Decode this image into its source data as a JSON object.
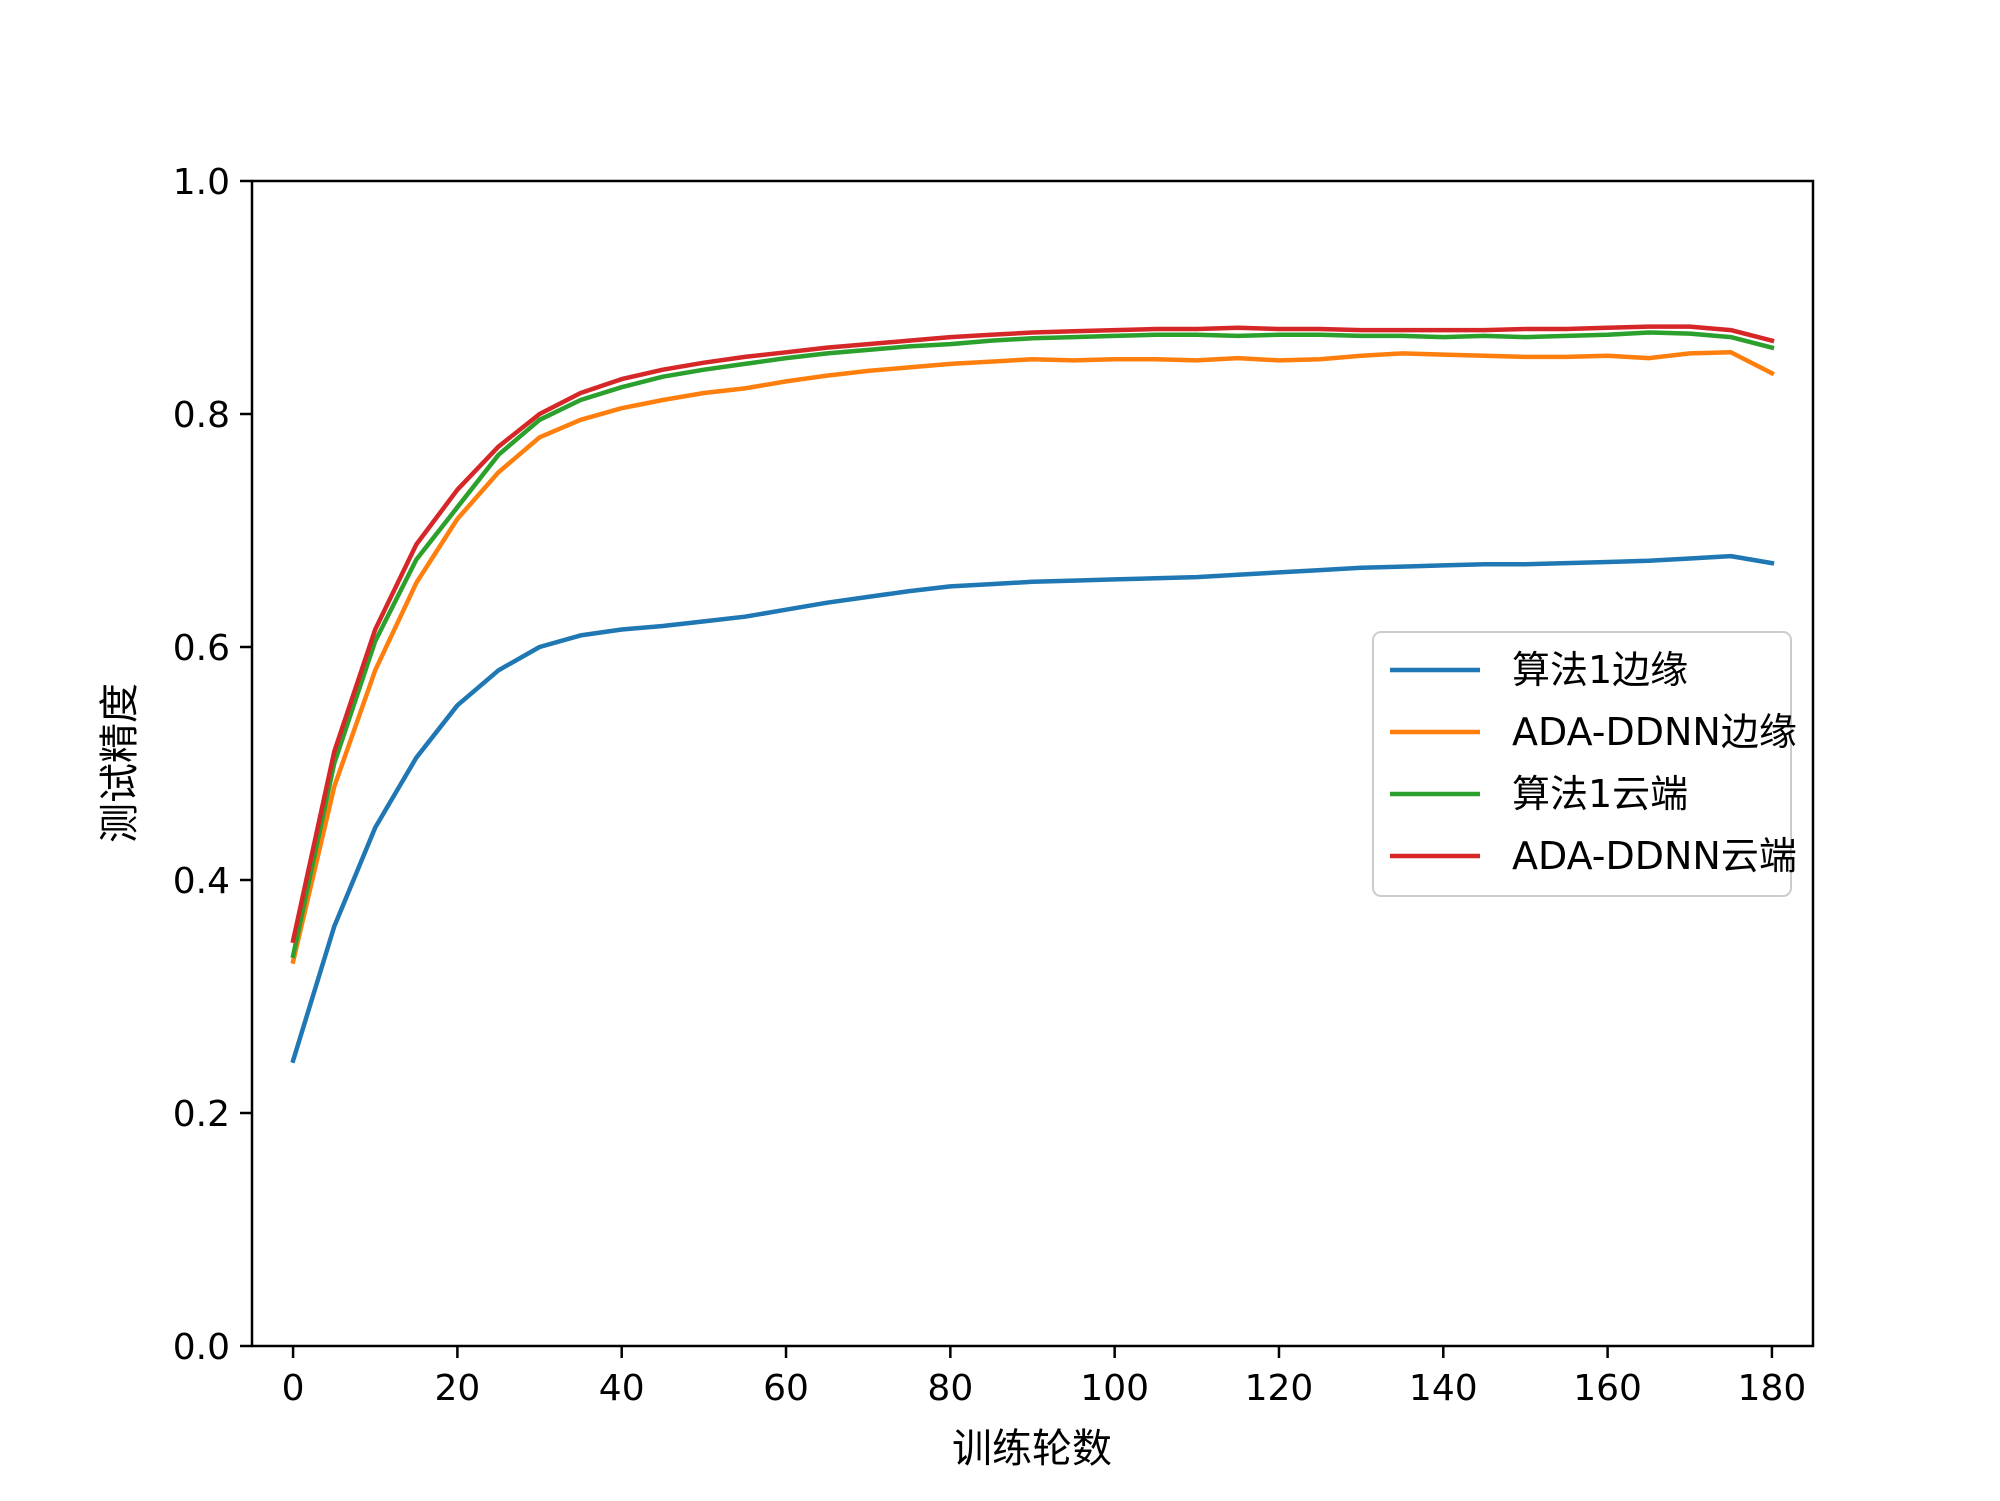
{
  "chart_data": {
    "type": "line",
    "xlabel": "训练轮数",
    "ylabel": "测试精度",
    "xlim": [
      -5,
      185
    ],
    "ylim": [
      0.0,
      1.0
    ],
    "xticks": [
      0,
      20,
      40,
      60,
      80,
      100,
      120,
      140,
      160,
      180
    ],
    "xtick_labels": [
      "0",
      "20",
      "40",
      "60",
      "80",
      "100",
      "120",
      "140",
      "160",
      "180"
    ],
    "yticks": [
      0.0,
      0.2,
      0.4,
      0.6,
      0.8,
      1.0
    ],
    "ytick_labels": [
      "0.0",
      "0.2",
      "0.4",
      "0.6",
      "0.8",
      "1.0"
    ],
    "grid": false,
    "legend_position": "center-right",
    "x": [
      0,
      5,
      10,
      15,
      20,
      25,
      30,
      35,
      40,
      45,
      50,
      55,
      60,
      65,
      70,
      75,
      80,
      85,
      90,
      95,
      100,
      105,
      110,
      115,
      120,
      125,
      130,
      135,
      140,
      145,
      150,
      155,
      160,
      165,
      170,
      175,
      180
    ],
    "series": [
      {
        "name": "算法1边缘",
        "color": "#1f77b4",
        "values": [
          0.245,
          0.36,
          0.445,
          0.505,
          0.55,
          0.58,
          0.6,
          0.61,
          0.615,
          0.618,
          0.622,
          0.626,
          0.632,
          0.638,
          0.643,
          0.648,
          0.652,
          0.654,
          0.656,
          0.657,
          0.658,
          0.659,
          0.66,
          0.662,
          0.664,
          0.666,
          0.668,
          0.669,
          0.67,
          0.671,
          0.671,
          0.672,
          0.673,
          0.674,
          0.676,
          0.678,
          0.672
        ]
      },
      {
        "name": "ADA-DDNN边缘",
        "color": "#ff7f0e",
        "values": [
          0.33,
          0.48,
          0.58,
          0.655,
          0.71,
          0.75,
          0.78,
          0.795,
          0.805,
          0.812,
          0.818,
          0.822,
          0.828,
          0.833,
          0.837,
          0.84,
          0.843,
          0.845,
          0.847,
          0.846,
          0.847,
          0.847,
          0.846,
          0.848,
          0.846,
          0.847,
          0.85,
          0.852,
          0.851,
          0.85,
          0.849,
          0.849,
          0.85,
          0.848,
          0.852,
          0.853,
          0.835
        ]
      },
      {
        "name": "算法1云端",
        "color": "#2ca02c",
        "values": [
          0.335,
          0.5,
          0.605,
          0.675,
          0.72,
          0.765,
          0.795,
          0.812,
          0.823,
          0.832,
          0.838,
          0.843,
          0.848,
          0.852,
          0.855,
          0.858,
          0.86,
          0.863,
          0.865,
          0.866,
          0.867,
          0.868,
          0.868,
          0.867,
          0.868,
          0.868,
          0.867,
          0.867,
          0.866,
          0.867,
          0.866,
          0.867,
          0.868,
          0.87,
          0.869,
          0.866,
          0.857
        ]
      },
      {
        "name": "ADA-DDNN云端",
        "color": "#d62728",
        "values": [
          0.348,
          0.51,
          0.615,
          0.688,
          0.735,
          0.772,
          0.8,
          0.818,
          0.83,
          0.838,
          0.844,
          0.849,
          0.853,
          0.857,
          0.86,
          0.863,
          0.866,
          0.868,
          0.87,
          0.871,
          0.872,
          0.873,
          0.873,
          0.874,
          0.873,
          0.873,
          0.872,
          0.872,
          0.872,
          0.872,
          0.873,
          0.873,
          0.874,
          0.875,
          0.875,
          0.872,
          0.863
        ]
      }
    ]
  }
}
